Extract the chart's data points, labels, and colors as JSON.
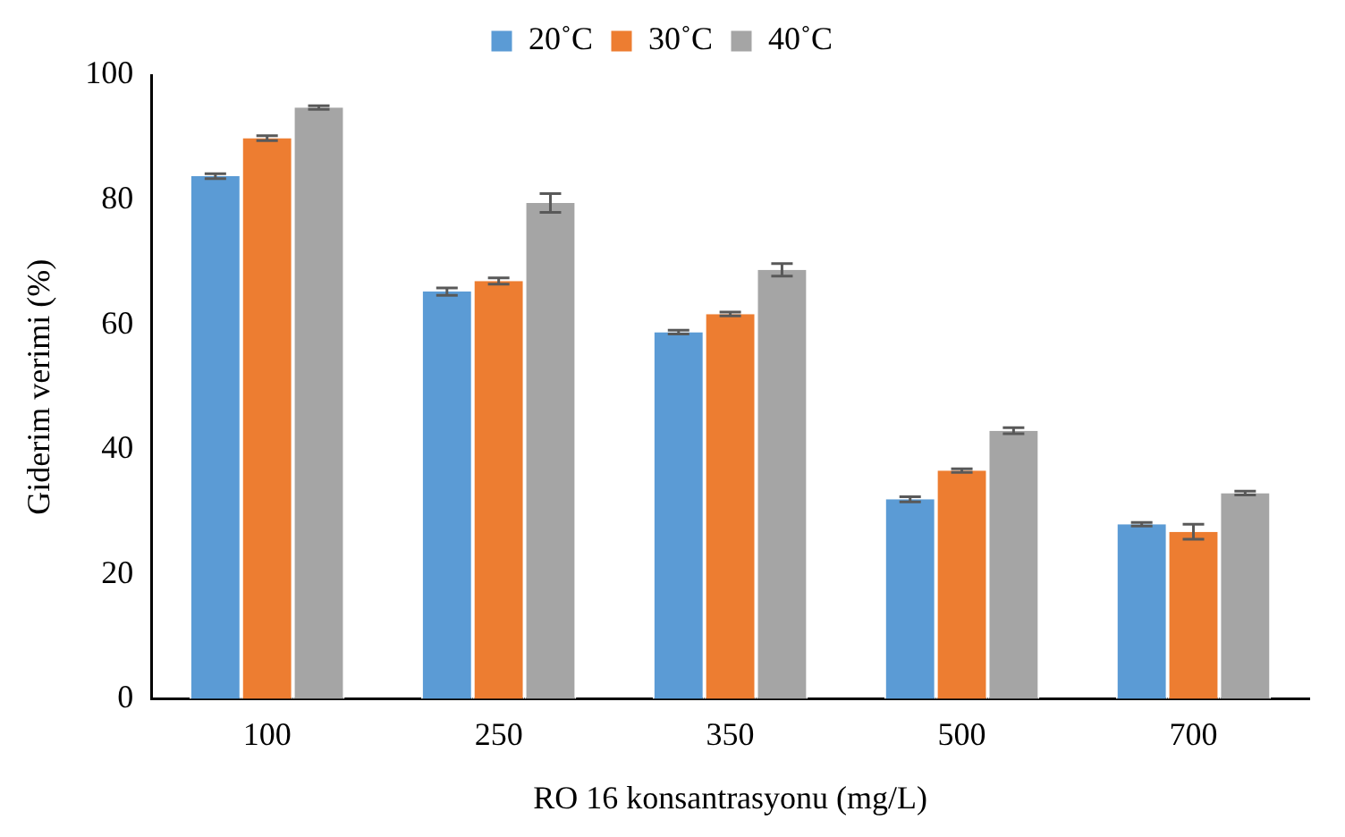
{
  "chart_data": {
    "type": "bar",
    "xlabel": "RO 16 konsantrasyonu (mg/L)",
    "ylabel": "Giderim verimi (%)",
    "categories": [
      "100",
      "250",
      "350",
      "500",
      "700"
    ],
    "series": [
      {
        "name": "20˚C",
        "color": "#5b9bd5",
        "values": [
          83.8,
          65.3,
          58.8,
          32,
          28
        ],
        "errors": [
          0.4,
          0.6,
          0.3,
          0.4,
          0.3
        ]
      },
      {
        "name": "30˚C",
        "color": "#ed7d31",
        "values": [
          89.9,
          67,
          61.7,
          36.6,
          26.8
        ],
        "errors": [
          0.4,
          0.5,
          0.3,
          0.3,
          1.2
        ]
      },
      {
        "name": "40˚C",
        "color": "#a5a5a5",
        "values": [
          94.8,
          79.5,
          68.8,
          43,
          33
        ],
        "errors": [
          0.3,
          1.5,
          1,
          0.5,
          0.3
        ]
      }
    ],
    "ylim": [
      0,
      100
    ],
    "yticks": [
      0,
      20,
      40,
      60,
      80,
      100
    ],
    "grid": false,
    "legend": "top"
  }
}
